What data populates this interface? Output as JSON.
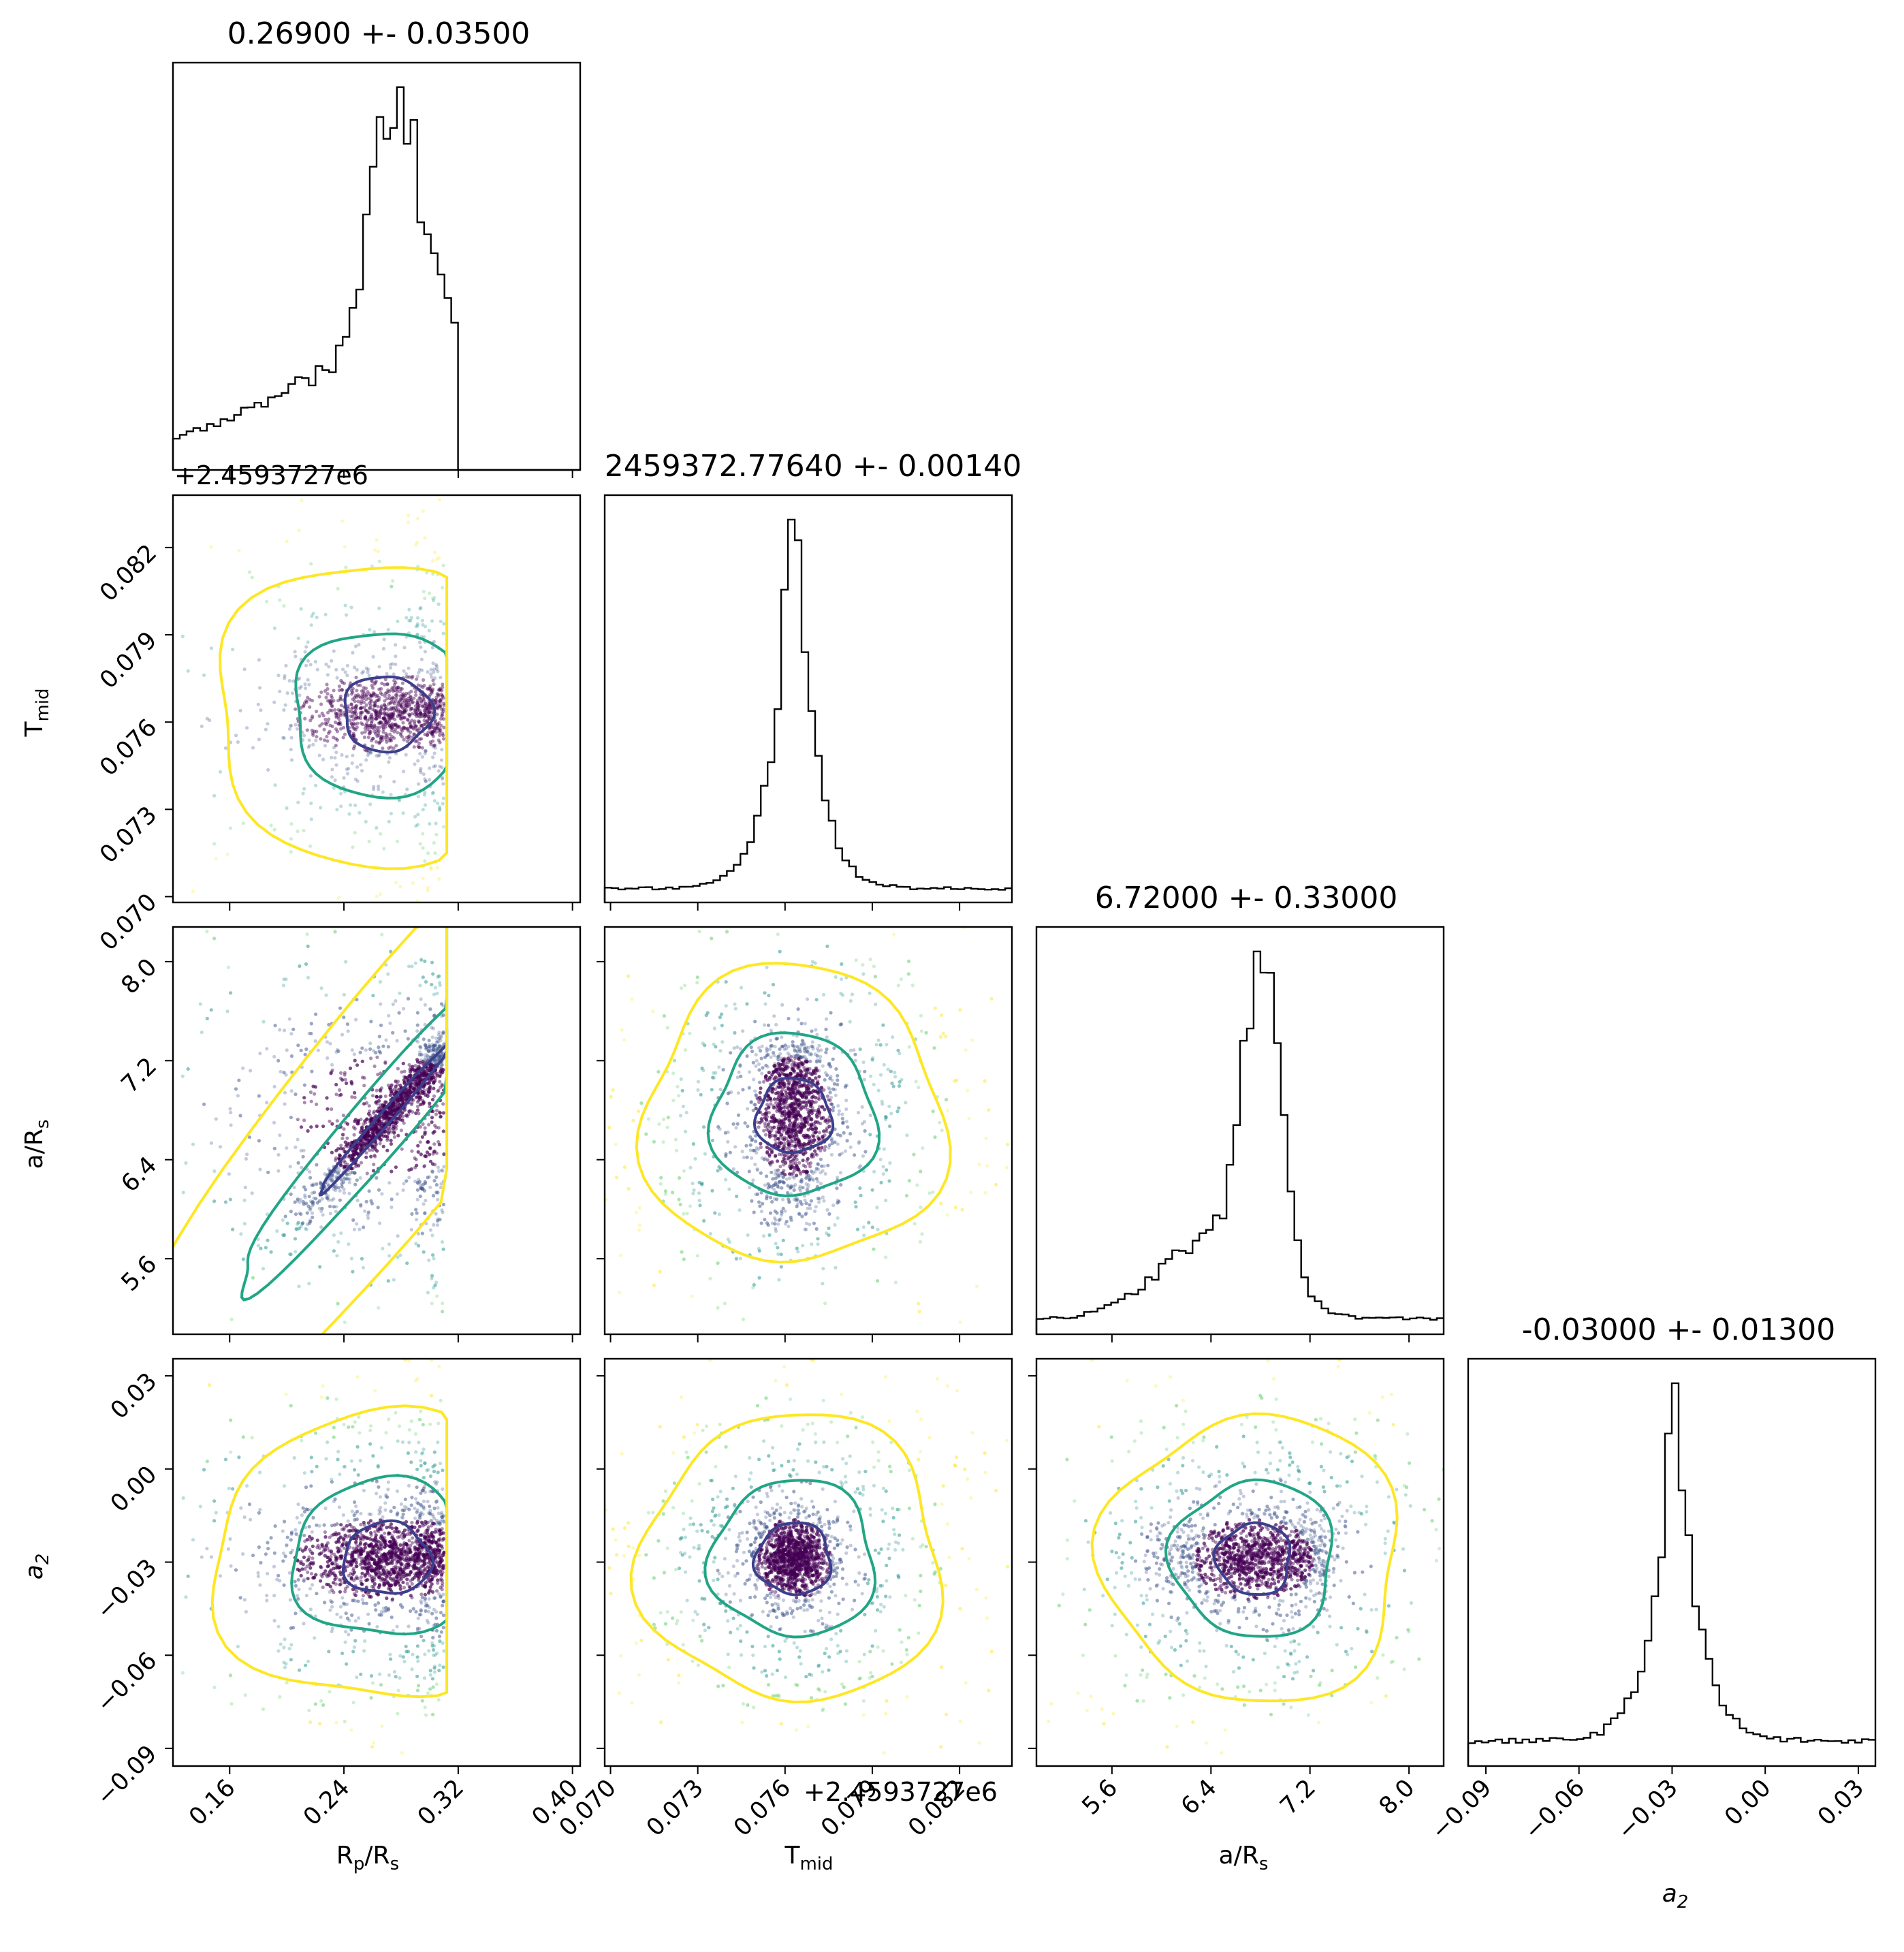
{
  "chart_data": {
    "type": "corner",
    "parameters": [
      {
        "id": "rp",
        "label": "R",
        "label_sub": "p",
        "label_tail": "/R",
        "label_tail_sub": "s",
        "range": [
          0.1203,
          0.4054
        ]
      },
      {
        "id": "tmid",
        "label": "T",
        "label_sub": "mid",
        "label_tail": "",
        "label_tail_sub": "",
        "offset_text": "+2.4593727e6",
        "range": [
          0.0698,
          0.0838
        ]
      },
      {
        "id": "ars",
        "label": "a/R",
        "label_sub": "s",
        "label_tail": "",
        "label_tail_sub": "",
        "range": [
          4.99,
          8.28
        ]
      },
      {
        "id": "a2",
        "label": "a",
        "label_sub": "2",
        "label_tail": "",
        "label_tail_sub": "",
        "range": [
          -0.0957,
          0.0355
        ]
      }
    ],
    "titles": [
      "0.26900 +- 0.03500",
      "2459372.77640 +- 0.00140",
      "6.72000 +- 0.33000",
      "-0.03000 +- 0.01300"
    ],
    "ticks": {
      "rp": [
        "0.16",
        "0.24",
        "0.32",
        "0.40"
      ],
      "tmid": [
        "0.070",
        "0.073",
        "0.076",
        "0.079",
        "0.082"
      ],
      "ars": [
        "5.6",
        "6.4",
        "7.2",
        "8.0"
      ],
      "a2": [
        "−0.09",
        "−0.06",
        "−0.03",
        "0.00",
        "0.03"
      ]
    },
    "tick_values": {
      "rp": [
        0.16,
        0.24,
        0.32,
        0.4
      ],
      "tmid": [
        0.07,
        0.073,
        0.076,
        0.079,
        0.082
      ],
      "ars": [
        5.6,
        6.4,
        7.2,
        8.0
      ],
      "a2": [
        -0.09,
        -0.06,
        -0.03,
        0.0,
        0.03
      ]
    },
    "colors": {
      "inner_contour": "#3b3f8c",
      "middle_contour": "#21a685",
      "outer_contour": "#fde725",
      "histogram": "#000000",
      "dense_points": "#440154"
    }
  }
}
